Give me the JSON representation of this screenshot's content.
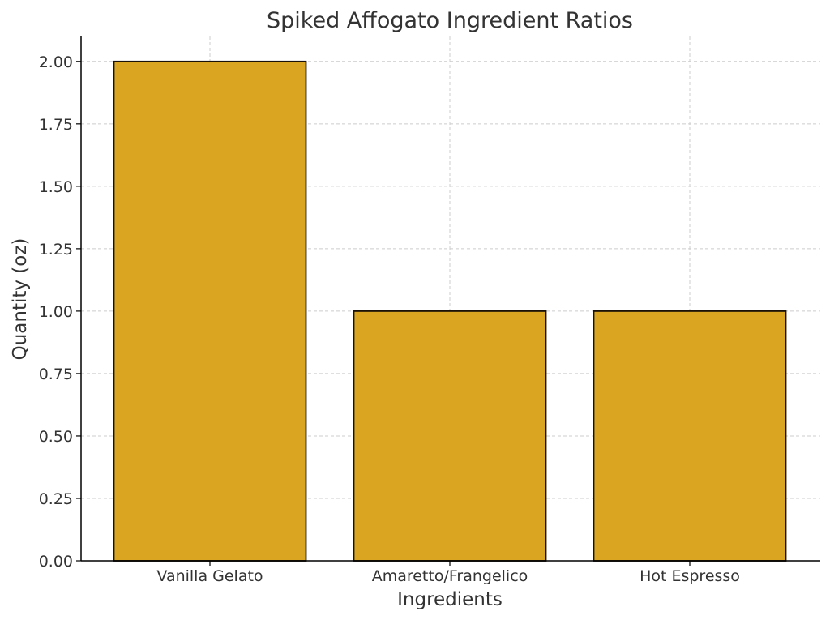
{
  "chart_data": {
    "type": "bar",
    "title": "Spiked Affogato Ingredient Ratios",
    "xlabel": "Ingredients",
    "ylabel": "Quantity (oz)",
    "categories": [
      "Vanilla Gelato",
      "Amaretto/Frangelico",
      "Hot Espresso"
    ],
    "values": [
      2.0,
      1.0,
      1.0
    ],
    "ylim": [
      0,
      2.1
    ],
    "yticks": [
      "0.00",
      "0.25",
      "0.50",
      "0.75",
      "1.00",
      "1.25",
      "1.50",
      "1.75",
      "2.00"
    ],
    "grid": true,
    "bar_color": "#DAA520",
    "edge_color": "#1a1208"
  }
}
